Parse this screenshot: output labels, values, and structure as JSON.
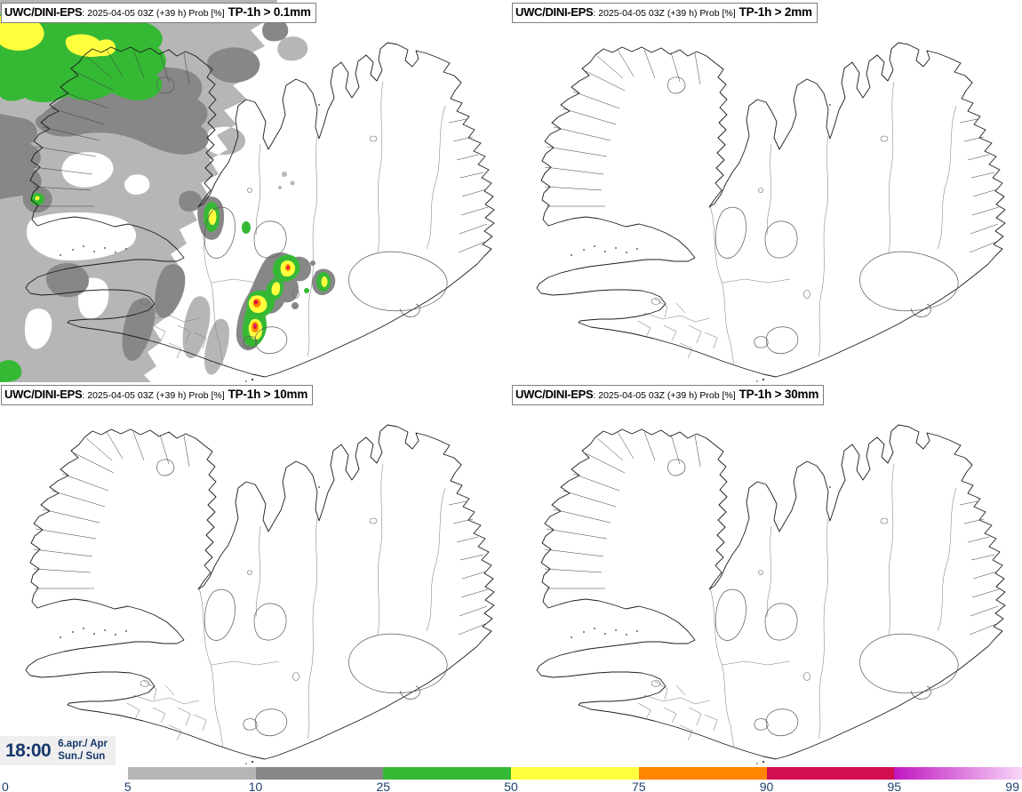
{
  "panels": [
    {
      "model": "UWC/DINI-EPS",
      "meta": ": 2025-04-05 03Z (+39 h) Prob [%]",
      "threshold": "TP-1h > 0.1mm"
    },
    {
      "model": "UWC/DINI-EPS",
      "meta": ": 2025-04-05 03Z (+39 h) Prob [%]",
      "threshold": "TP-1h > 2mm"
    },
    {
      "model": "UWC/DINI-EPS",
      "meta": ": 2025-04-05 03Z (+39 h) Prob [%]",
      "threshold": "TP-1h > 10mm"
    },
    {
      "model": "UWC/DINI-EPS",
      "meta": ": 2025-04-05 03Z (+39 h) Prob [%]",
      "threshold": "TP-1h > 30mm"
    }
  ],
  "clock": {
    "time": "18:00",
    "date_line1": "6.apr./ Apr",
    "date_line2": "Sun./ Sun"
  },
  "colorbar": {
    "unit": "Prob [%]",
    "ticks": [
      "0",
      "5",
      "10",
      "25",
      "50",
      "75",
      "90",
      "95",
      "99"
    ],
    "segments": [
      {
        "from": "0",
        "to": "5",
        "color": null
      },
      {
        "from": "5",
        "to": "10",
        "color": "#b5b5b5"
      },
      {
        "from": "10",
        "to": "25",
        "color": "#878787"
      },
      {
        "from": "25",
        "to": "50",
        "color": "#35b935"
      },
      {
        "from": "50",
        "to": "75",
        "color": "#ffff3d"
      },
      {
        "from": "75",
        "to": "90",
        "color": "#ff8400"
      },
      {
        "from": "90",
        "to": "95",
        "color": "#d30f4f"
      },
      {
        "from": "95",
        "to": "99",
        "color": "#c016c0",
        "color_end": "#f8d6f8"
      }
    ]
  },
  "overlay_colors": {
    "prob_5_10": "#b6b6b6",
    "prob_10_25": "#878787",
    "prob_25_50": "#35b935",
    "prob_50_75": "#ffff3d",
    "prob_75_90": "#ff8400",
    "prob_90_95": "#d30f4f",
    "prob_95_99": "#cc2acc"
  }
}
